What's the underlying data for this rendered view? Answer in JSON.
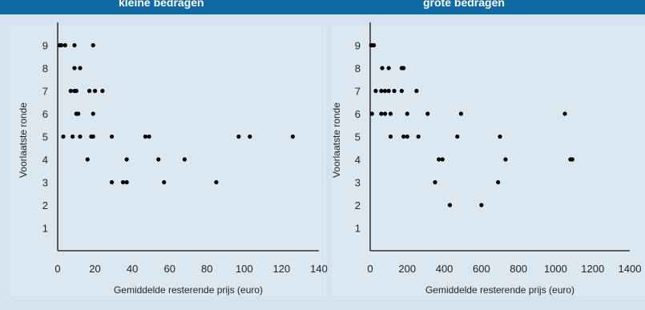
{
  "header": {
    "left_title": "kleine bedragen",
    "right_title": "grote bedragen"
  },
  "chart_data": [
    {
      "type": "scatter",
      "title": "kleine bedragen",
      "xlabel": "Gemiddelde resterende prijs (euro)",
      "ylabel": "Voorlaatste ronde",
      "xlim": [
        0,
        140
      ],
      "ylim": [
        0,
        10
      ],
      "xticks": [
        0,
        20,
        40,
        60,
        80,
        100,
        120,
        140
      ],
      "yticks": [
        1,
        2,
        3,
        4,
        5,
        6,
        7,
        8,
        9
      ],
      "points": [
        [
          1,
          9
        ],
        [
          2,
          9
        ],
        [
          4,
          9
        ],
        [
          9,
          9
        ],
        [
          19,
          9
        ],
        [
          9,
          8
        ],
        [
          12,
          8
        ],
        [
          7,
          7
        ],
        [
          9,
          7
        ],
        [
          10,
          7
        ],
        [
          17,
          7
        ],
        [
          20,
          7
        ],
        [
          24,
          7
        ],
        [
          10,
          6
        ],
        [
          11,
          6
        ],
        [
          19,
          6
        ],
        [
          3,
          5
        ],
        [
          8,
          5
        ],
        [
          12,
          5
        ],
        [
          18,
          5
        ],
        [
          19,
          5
        ],
        [
          29,
          5
        ],
        [
          47,
          5
        ],
        [
          49,
          5
        ],
        [
          97,
          5
        ],
        [
          103,
          5
        ],
        [
          126,
          5
        ],
        [
          16,
          4
        ],
        [
          37,
          4
        ],
        [
          54,
          4
        ],
        [
          68,
          4
        ],
        [
          29,
          3
        ],
        [
          35,
          3
        ],
        [
          37,
          3
        ],
        [
          57,
          3
        ],
        [
          85,
          3
        ]
      ]
    },
    {
      "type": "scatter",
      "title": "grote bedragen",
      "xlabel": "Gemiddelde resterende prijs (euro)",
      "ylabel": "Voorlaatste ronde",
      "xlim": [
        0,
        1400
      ],
      "ylim": [
        0,
        10
      ],
      "xticks": [
        0,
        200,
        400,
        600,
        800,
        1000,
        1200,
        1400
      ],
      "yticks": [
        1,
        2,
        3,
        4,
        5,
        6,
        7,
        8,
        9
      ],
      "points": [
        [
          5,
          9
        ],
        [
          10,
          9
        ],
        [
          20,
          9
        ],
        [
          65,
          8
        ],
        [
          100,
          8
        ],
        [
          170,
          8
        ],
        [
          180,
          8
        ],
        [
          30,
          7
        ],
        [
          60,
          7
        ],
        [
          80,
          7
        ],
        [
          100,
          7
        ],
        [
          130,
          7
        ],
        [
          170,
          7
        ],
        [
          250,
          7
        ],
        [
          10,
          6
        ],
        [
          60,
          6
        ],
        [
          80,
          6
        ],
        [
          110,
          6
        ],
        [
          200,
          6
        ],
        [
          310,
          6
        ],
        [
          490,
          6
        ],
        [
          1050,
          6
        ],
        [
          110,
          5
        ],
        [
          180,
          5
        ],
        [
          200,
          5
        ],
        [
          260,
          5
        ],
        [
          470,
          5
        ],
        [
          700,
          5
        ],
        [
          370,
          4
        ],
        [
          390,
          4
        ],
        [
          730,
          4
        ],
        [
          1080,
          4
        ],
        [
          1090,
          4
        ],
        [
          350,
          3
        ],
        [
          690,
          3
        ],
        [
          430,
          2
        ],
        [
          600,
          2
        ]
      ]
    }
  ]
}
